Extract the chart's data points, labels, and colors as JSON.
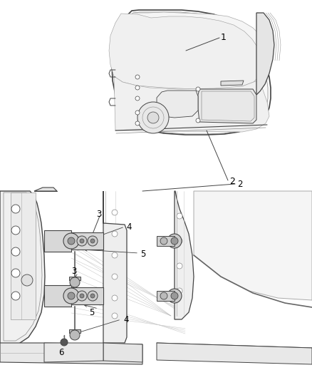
{
  "bg_color": "#ffffff",
  "line_color": "#444444",
  "label_color": "#000000",
  "fig_width": 4.38,
  "fig_height": 5.33,
  "dpi": 100,
  "top_panel": {
    "ymin": 0.51,
    "ymax": 1.0
  },
  "bottom_panel": {
    "ymin": 0.0,
    "ymax": 0.5
  }
}
